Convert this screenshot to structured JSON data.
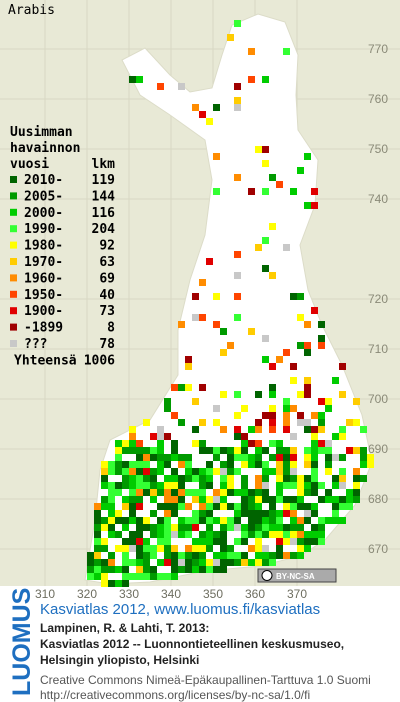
{
  "map": {
    "title": "Arabis",
    "legend": {
      "heading": [
        "Uusimman",
        "havainnon"
      ],
      "col_period": "vuosi",
      "col_count": "lkm",
      "rows": [
        {
          "label": "2010-",
          "count": 119,
          "color": "#006400"
        },
        {
          "label": "2005-",
          "count": 144,
          "color": "#009a00"
        },
        {
          "label": "2000-",
          "count": 116,
          "color": "#00cc00"
        },
        {
          "label": "1990-",
          "count": 204,
          "color": "#33ff33"
        },
        {
          "label": "1980-",
          "count": 92,
          "color": "#ffff00"
        },
        {
          "label": "1970-",
          "count": 63,
          "color": "#ffcc00"
        },
        {
          "label": "1960-",
          "count": 69,
          "color": "#ff8c00"
        },
        {
          "label": "1950-",
          "count": 40,
          "color": "#ff4500"
        },
        {
          "label": "1900-",
          "count": 73,
          "color": "#e00000"
        },
        {
          "label": "-1899",
          "count": 8,
          "color": "#a00000"
        },
        {
          "label": "???",
          "count": 78,
          "color": "#c8c8c8"
        }
      ],
      "total_label": "Yhteensä",
      "total": 1006
    },
    "x_labels": [
      310,
      320,
      330,
      340,
      350,
      360,
      370
    ],
    "y_labels": [
      770,
      760,
      750,
      740,
      720,
      710,
      700,
      690,
      680,
      670
    ],
    "license_badge": "BY-NC-SA"
  },
  "footer": {
    "side_logo": "LUOMUS",
    "link": "Kasviatlas 2012, www.luomus.fi/kasviatlas",
    "citation": [
      "Lampinen, R. & Lahti, T. 2013:",
      "Kasviatlas 2012 -- Luonnontieteellinen keskusmuseo,",
      "Helsingin yliopisto, Helsinki"
    ],
    "license": [
      "Creative Commons Nimeä-Epäkaupallinen-Tarttuva 1.0 Suomi",
      "http://creativecommons.org/licenses/by-nc-sa/1.0/fi"
    ]
  }
}
